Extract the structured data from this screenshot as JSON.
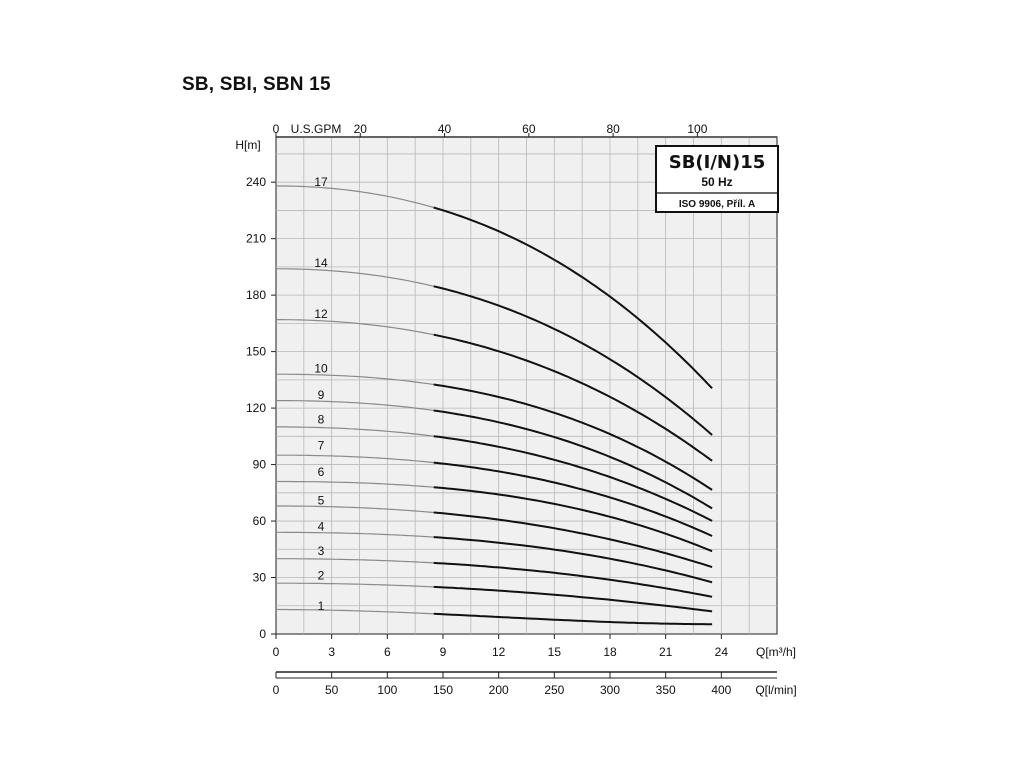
{
  "page": {
    "title": "SB, SBI, SBN 15"
  },
  "chart_data": {
    "type": "line",
    "title": "SB, SBI, SBN 15",
    "legend_box": {
      "title": "SB(I/N)15",
      "frequency": "50 Hz",
      "standard": "ISO 9906, Příl. A",
      "placement": "top-right"
    },
    "xlabel": "Q[m³/h]",
    "ylabel": "H[m]",
    "x2label": "Q[l/min]",
    "top_axis_label": "U.S.GPM",
    "xlim": [
      0,
      27
    ],
    "ylim": [
      0,
      264
    ],
    "x_ticks": [
      0,
      3,
      6,
      9,
      12,
      15,
      18,
      21,
      24
    ],
    "y_ticks": [
      0,
      30,
      60,
      90,
      120,
      150,
      180,
      210,
      240
    ],
    "top_ticks": [
      0,
      20,
      40,
      60,
      80,
      100
    ],
    "lmin_ticks": [
      0,
      50,
      100,
      150,
      200,
      250,
      300,
      350,
      400
    ],
    "grid": true,
    "solid_range": [
      8.5,
      23.5
    ],
    "series": [
      {
        "name": "1",
        "label_y": 15,
        "shutoff": 13,
        "values_at_solid_range": [
          10,
          4.5
        ]
      },
      {
        "name": "2",
        "label_y": 31,
        "shutoff": 27,
        "values_at_solid_range": [
          25,
          12
        ]
      },
      {
        "name": "3",
        "label_y": 44,
        "shutoff": 40,
        "values_at_solid_range": [
          38,
          20
        ]
      },
      {
        "name": "4",
        "label_y": 57,
        "shutoff": 54,
        "values_at_solid_range": [
          52,
          28
        ]
      },
      {
        "name": "5",
        "label_y": 71,
        "shutoff": 68,
        "values_at_solid_range": [
          65,
          36
        ]
      },
      {
        "name": "6",
        "label_y": 86,
        "shutoff": 81,
        "values_at_solid_range": [
          79,
          45
        ]
      },
      {
        "name": "7",
        "label_y": 100,
        "shutoff": 95,
        "values_at_solid_range": [
          92,
          53
        ]
      },
      {
        "name": "8",
        "label_y": 114,
        "shutoff": 110,
        "values_at_solid_range": [
          106,
          61
        ]
      },
      {
        "name": "9",
        "label_y": 127,
        "shutoff": 124,
        "values_at_solid_range": [
          120,
          68
        ]
      },
      {
        "name": "10",
        "label_y": 141,
        "shutoff": 138,
        "values_at_solid_range": [
          134,
          78
        ]
      },
      {
        "name": "12",
        "label_y": 170,
        "shutoff": 167,
        "values_at_solid_range": [
          160,
          93
        ]
      },
      {
        "name": "14",
        "label_y": 197,
        "shutoff": 194,
        "values_at_solid_range": [
          186,
          107
        ]
      },
      {
        "name": "17",
        "label_y": 240,
        "shutoff": 238,
        "values_at_solid_range": [
          228,
          132
        ]
      }
    ]
  }
}
